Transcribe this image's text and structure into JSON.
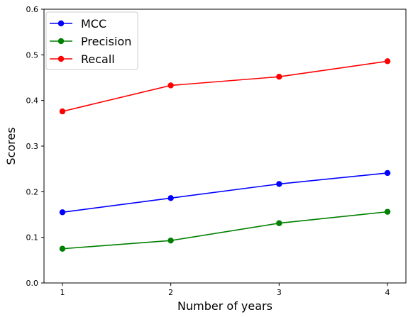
{
  "chart_data": {
    "type": "line",
    "title": "",
    "xlabel": "Number of years",
    "ylabel": "Scores",
    "x": [
      1,
      2,
      3,
      4
    ],
    "x_ticks": [
      "1",
      "2",
      "3",
      "4"
    ],
    "y_ticks": [
      "0.0",
      "0.1",
      "0.2",
      "0.3",
      "0.4",
      "0.5",
      "0.6"
    ],
    "xlim": [
      0.83,
      4.17
    ],
    "ylim": [
      0.0,
      0.6
    ],
    "grid": false,
    "legend_position": "top-left",
    "series": [
      {
        "name": "MCC",
        "color": "#0000ff",
        "values": [
          0.155,
          0.186,
          0.217,
          0.241
        ]
      },
      {
        "name": "Precision",
        "color": "#008000",
        "values": [
          0.075,
          0.093,
          0.131,
          0.156
        ]
      },
      {
        "name": "Recall",
        "color": "#ff0000",
        "values": [
          0.376,
          0.433,
          0.452,
          0.486
        ]
      }
    ]
  }
}
